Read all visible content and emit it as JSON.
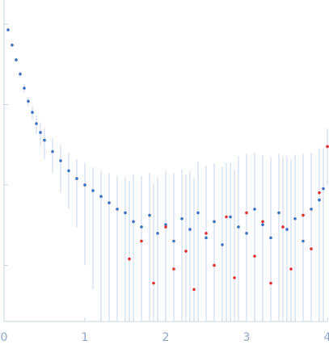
{
  "chart_data": {
    "type": "scatter",
    "log_y": true,
    "error_color": "#c6d6ec",
    "axis_color": "#c8d4e4",
    "xlim": [
      0,
      4
    ],
    "xticks": [
      0,
      1,
      2,
      3,
      4
    ],
    "ylim": [
      0.0002,
      2
    ],
    "yticks": [
      0.001,
      0.01,
      0.1,
      1
    ],
    "series": [
      {
        "color": "#3e6fc0",
        "x": [
          0.05,
          0.1,
          0.15,
          0.2,
          0.25,
          0.3,
          0.35,
          0.4,
          0.45,
          0.5,
          0.6,
          0.7,
          0.8,
          0.9,
          1.0,
          1.1,
          1.2,
          1.3,
          1.4,
          1.5,
          1.6,
          1.7,
          1.8,
          1.9,
          2.0,
          2.1,
          2.2,
          2.3,
          2.4,
          2.5,
          2.6,
          2.7,
          2.8,
          2.9,
          3.0,
          3.1,
          3.2,
          3.3,
          3.4,
          3.5,
          3.6,
          3.7,
          3.8,
          3.9,
          3.95
        ],
        "values": [
          0.85,
          0.55,
          0.36,
          0.24,
          0.16,
          0.11,
          0.08,
          0.058,
          0.045,
          0.036,
          0.026,
          0.02,
          0.015,
          0.012,
          0.01,
          0.0085,
          0.0072,
          0.006,
          0.005,
          0.0045,
          0.0035,
          0.003,
          0.0042,
          0.0025,
          0.0032,
          0.002,
          0.0038,
          0.0028,
          0.0045,
          0.0022,
          0.0035,
          0.0018,
          0.004,
          0.003,
          0.0025,
          0.005,
          0.0032,
          0.0022,
          0.0045,
          0.0028,
          0.0038,
          0.002,
          0.005,
          0.0065,
          0.009
        ],
        "errors": [
          0.02,
          0.02,
          0.02,
          0.02,
          0.02,
          0.015,
          0.015,
          0.015,
          0.015,
          0.015,
          0.012,
          0.012,
          0.01,
          0.009,
          0.009,
          0.008,
          0.008,
          0.008,
          0.008,
          0.008,
          0.01,
          0.01,
          0.01,
          0.01,
          0.012,
          0.012,
          0.012,
          0.012,
          0.015,
          0.015,
          0.015,
          0.015,
          0.015,
          0.02,
          0.02,
          0.02,
          0.02,
          0.02,
          0.02,
          0.02,
          0.02,
          0.02,
          0.02,
          0.02,
          0.02
        ]
      },
      {
        "color": "#e03030",
        "x": [
          1.55,
          1.7,
          1.85,
          2.0,
          2.1,
          2.25,
          2.35,
          2.5,
          2.6,
          2.75,
          2.85,
          3.0,
          3.1,
          3.2,
          3.3,
          3.45,
          3.55,
          3.7,
          3.8,
          3.9,
          4.0
        ],
        "values": [
          0.0012,
          0.002,
          0.0006,
          0.003,
          0.0009,
          0.0015,
          0.0005,
          0.0025,
          0.001,
          0.004,
          0.0007,
          0.0045,
          0.0013,
          0.0035,
          0.0006,
          0.003,
          0.0009,
          0.0042,
          0.0016,
          0.008,
          0.03
        ],
        "errors": [
          0.01,
          0.01,
          0.01,
          0.012,
          0.012,
          0.012,
          0.012,
          0.015,
          0.015,
          0.015,
          0.015,
          0.02,
          0.02,
          0.02,
          0.02,
          0.02,
          0.02,
          0.02,
          0.02,
          0.02,
          0.02
        ]
      }
    ]
  }
}
